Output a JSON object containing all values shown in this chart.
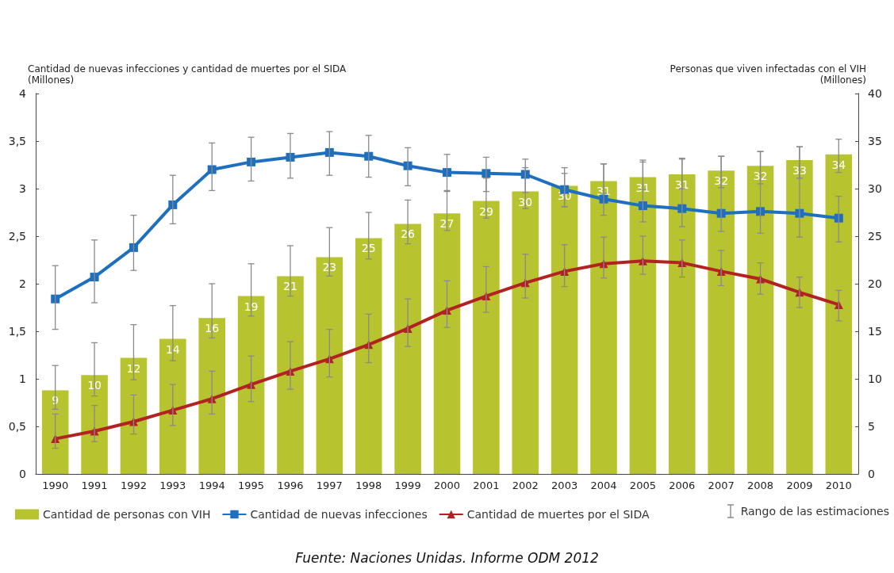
{
  "chart_data": {
    "type": "bar",
    "ylabel": "Cantidad de nuevas infecciones y cantidad de muertes por el SIDA\n(Millones)",
    "y2label": "Personas que viven infectadas con el VIH\n(Millones)",
    "annotations": [
      "Rango de las estimaciones",
      "Fuente: Naciones Unidas. Informe ODM 2012"
    ],
    "categories": [
      "1990",
      "1991",
      "1992",
      "1993",
      "1994",
      "1995",
      "1996",
      "1997",
      "1998",
      "1999",
      "2000",
      "2001",
      "2002",
      "2003",
      "2004",
      "2005",
      "2006",
      "2007",
      "2008",
      "2009",
      "2010"
    ],
    "series": [
      {
        "name": "Cantidad de personas con VIH",
        "axis": "y2",
        "color": "#b8c42f",
        "values": [
          8.8,
          10.4,
          12.2,
          14.2,
          16.4,
          18.7,
          20.8,
          22.8,
          24.8,
          26.3,
          27.4,
          28.7,
          29.7,
          30.3,
          30.8,
          31.2,
          31.5,
          31.9,
          32.4,
          33.0,
          33.6
        ],
        "value_labels": [
          "9",
          "10",
          "12",
          "14",
          "16",
          "19",
          "21",
          "23",
          "25",
          "26",
          "27",
          "29",
          "30",
          "30",
          "31",
          "31",
          "31",
          "32",
          "32",
          "33",
          "34"
        ],
        "errors": [
          [
            6.8,
            11.4
          ],
          [
            8.2,
            13.8
          ],
          [
            9.9,
            15.7
          ],
          [
            11.9,
            17.7
          ],
          [
            14.3,
            20.0
          ],
          [
            16.6,
            22.1
          ],
          [
            18.7,
            24.0
          ],
          [
            20.8,
            25.9
          ],
          [
            22.6,
            27.5
          ],
          [
            24.2,
            28.8
          ],
          [
            25.6,
            29.8
          ],
          [
            26.9,
            31.1
          ],
          [
            27.9,
            32.2
          ],
          [
            28.1,
            31.6
          ],
          [
            29.5,
            32.6
          ],
          [
            29.9,
            33.0
          ],
          [
            30.0,
            33.2
          ],
          [
            30.1,
            33.4
          ],
          [
            30.5,
            33.9
          ],
          [
            31.1,
            34.4
          ],
          [
            31.7,
            35.2
          ]
        ]
      },
      {
        "name": "Cantidad de nuevas infecciones",
        "type": "line",
        "color": "#1f6fbf",
        "marker": "square",
        "values": [
          1.84,
          2.07,
          2.38,
          2.83,
          3.2,
          3.28,
          3.33,
          3.38,
          3.34,
          3.24,
          3.17,
          3.16,
          3.15,
          2.99,
          2.89,
          2.82,
          2.79,
          2.74,
          2.76,
          2.74,
          2.69
        ],
        "errors": [
          [
            1.52,
            2.19
          ],
          [
            1.8,
            2.46
          ],
          [
            2.14,
            2.72
          ],
          [
            2.63,
            3.14
          ],
          [
            2.98,
            3.48
          ],
          [
            3.08,
            3.54
          ],
          [
            3.11,
            3.58
          ],
          [
            3.14,
            3.6
          ],
          [
            3.12,
            3.56
          ],
          [
            3.03,
            3.43
          ],
          [
            2.97,
            3.36
          ],
          [
            2.97,
            3.33
          ],
          [
            2.96,
            3.31
          ],
          [
            2.81,
            3.22
          ],
          [
            2.72,
            3.26
          ],
          [
            2.65,
            3.28
          ],
          [
            2.6,
            3.31
          ],
          [
            2.55,
            3.34
          ],
          [
            2.53,
            3.39
          ],
          [
            2.49,
            3.44
          ],
          [
            2.44,
            2.92
          ]
        ]
      },
      {
        "name": "Cantidad de muertes por el SIDA",
        "type": "line",
        "color": "#b22222",
        "marker": "triangle",
        "values": [
          0.37,
          0.45,
          0.55,
          0.67,
          0.79,
          0.94,
          1.08,
          1.21,
          1.36,
          1.53,
          1.72,
          1.87,
          2.01,
          2.13,
          2.21,
          2.24,
          2.22,
          2.13,
          2.05,
          1.91,
          1.78
        ],
        "errors": [
          [
            0.27,
            0.63
          ],
          [
            0.34,
            0.72
          ],
          [
            0.42,
            0.83
          ],
          [
            0.51,
            0.94
          ],
          [
            0.63,
            1.08
          ],
          [
            0.76,
            1.24
          ],
          [
            0.89,
            1.39
          ],
          [
            1.02,
            1.52
          ],
          [
            1.17,
            1.68
          ],
          [
            1.34,
            1.84
          ],
          [
            1.54,
            2.03
          ],
          [
            1.7,
            2.18
          ],
          [
            1.85,
            2.31
          ],
          [
            1.97,
            2.41
          ],
          [
            2.06,
            2.49
          ],
          [
            2.1,
            2.5
          ],
          [
            2.07,
            2.46
          ],
          [
            1.98,
            2.35
          ],
          [
            1.89,
            2.22
          ],
          [
            1.75,
            2.07
          ],
          [
            1.61,
            1.93
          ]
        ]
      }
    ],
    "ylim": [
      0,
      4
    ],
    "yticks": [
      0,
      {
        "value": 0.5,
        "label": "0,5"
      },
      1,
      {
        "value": 1.5,
        "label": "1,5"
      },
      2,
      {
        "value": 2.5,
        "label": "2,5"
      },
      3,
      {
        "value": 3.5,
        "label": "3,5"
      },
      4
    ],
    "y2lim": [
      0,
      40
    ],
    "y2ticks": [
      0,
      5,
      10,
      15,
      20,
      25,
      30,
      35,
      40
    ],
    "grid": false,
    "legend": "bottom"
  }
}
